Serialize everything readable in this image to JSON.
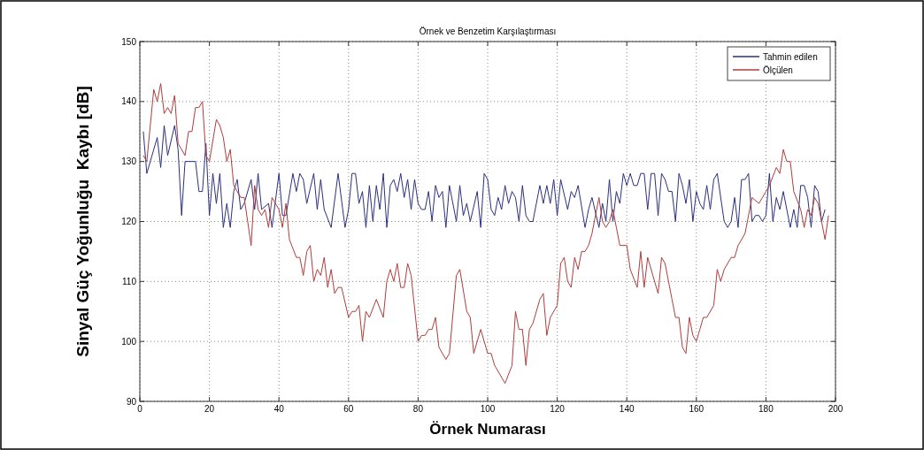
{
  "chart_data": {
    "type": "line",
    "title": "Örnek ve Benzetim Karşılaştırması",
    "xlabel": "Örnek Numarası",
    "ylabel": "Sinyal Güç Yoğunluğu  Kaybı [dB]",
    "xlim": [
      0,
      200
    ],
    "xticks": [
      0,
      20,
      40,
      60,
      80,
      100,
      120,
      140,
      160,
      180,
      200
    ],
    "ylim": [
      90,
      150
    ],
    "yticks": [
      90,
      100,
      110,
      120,
      130,
      140,
      150
    ],
    "grid": true,
    "legend": "top right",
    "line_style": "solid",
    "series": [
      {
        "name": "Tahmin edilen",
        "color": "#2b2f7e",
        "x": [
          1,
          2,
          5,
          6,
          7,
          8,
          10,
          11,
          12,
          13,
          16,
          17,
          18,
          19,
          20,
          21,
          22,
          23,
          24,
          25,
          26,
          27,
          28,
          29,
          30,
          32,
          33,
          34,
          35,
          37,
          38,
          40,
          41,
          42,
          44,
          45,
          46,
          47,
          48,
          50,
          51,
          52,
          53,
          55,
          57,
          59,
          60,
          61,
          62,
          63,
          64,
          65,
          66,
          67,
          68,
          69,
          70,
          71,
          72,
          73,
          74,
          75,
          76,
          77,
          78,
          79,
          80,
          81,
          82,
          83,
          84,
          85,
          86,
          87,
          88,
          89,
          91,
          92,
          93,
          94,
          95,
          97,
          98,
          99,
          100,
          101,
          102,
          103,
          104,
          105,
          106,
          107,
          108,
          109,
          110,
          111,
          112,
          113,
          115,
          116,
          117,
          118,
          119,
          120,
          121,
          123,
          124,
          125,
          126,
          128,
          129,
          130,
          132,
          133,
          134,
          135,
          136,
          137,
          138,
          139,
          140,
          141,
          142,
          143,
          144,
          145,
          146,
          147,
          148,
          149,
          150,
          151,
          152,
          153,
          154,
          155,
          156,
          157,
          158,
          159,
          160,
          161,
          162,
          163,
          164,
          165,
          166,
          168,
          169,
          170,
          171,
          172,
          173,
          174,
          175,
          176,
          177,
          178,
          179,
          180,
          181,
          182,
          183,
          184,
          185,
          186,
          187,
          188,
          189,
          190,
          191,
          192,
          193,
          194,
          195,
          196,
          197
        ],
        "values": [
          135,
          128,
          134,
          129,
          136,
          131,
          136,
          132,
          121,
          130,
          130,
          125,
          125,
          133,
          121,
          128,
          123,
          128,
          119,
          123,
          119,
          125,
          127,
          122,
          123,
          127,
          122,
          128,
          122,
          123,
          119,
          128,
          121,
          121,
          128,
          125,
          128,
          127,
          123,
          128,
          122,
          127,
          122,
          119,
          128,
          119,
          122,
          128,
          128,
          123,
          125,
          119,
          126,
          120,
          126,
          122,
          128,
          119,
          126,
          127,
          125,
          128,
          124,
          127,
          122,
          127,
          123,
          122,
          122,
          125,
          120,
          126,
          124,
          125,
          119,
          126,
          120,
          126,
          121,
          123,
          120,
          125,
          119,
          128,
          127,
          122,
          121,
          124,
          122,
          126,
          123,
          125,
          124,
          120,
          126,
          121,
          120,
          120,
          126,
          123,
          126,
          123,
          127,
          121,
          127,
          122,
          125,
          124,
          126,
          119,
          122,
          124,
          119,
          123,
          120,
          127,
          120,
          125,
          123,
          128,
          126,
          128,
          126,
          126,
          128,
          128,
          122,
          128,
          128,
          121,
          128,
          127,
          125,
          125,
          120,
          128,
          126,
          123,
          127,
          120,
          125,
          123,
          122,
          126,
          122,
          127,
          128,
          120,
          119,
          120,
          124,
          119,
          127,
          127,
          128,
          120,
          121,
          121,
          120,
          121,
          128,
          120,
          124,
          122,
          125,
          122,
          119,
          122,
          119,
          126,
          126,
          124,
          119,
          126,
          125,
          120,
          122
        ]
      },
      {
        "name": "Ölçülen",
        "color": "#b03c3c",
        "x": [
          1,
          2,
          4,
          5,
          6,
          7,
          8,
          9,
          10,
          11,
          13,
          14,
          15,
          16,
          17,
          18,
          19,
          20,
          22,
          23,
          24,
          25,
          26,
          27,
          29,
          30,
          31,
          32,
          33,
          34,
          35,
          36,
          37,
          38,
          40,
          41,
          42,
          43,
          45,
          46,
          47,
          48,
          49,
          50,
          51,
          52,
          53,
          54,
          55,
          56,
          57,
          58,
          60,
          61,
          62,
          63,
          64,
          65,
          66,
          68,
          70,
          71,
          72,
          73,
          74,
          75,
          76,
          77,
          78,
          80,
          81,
          82,
          83,
          84,
          85,
          86,
          88,
          89,
          91,
          92,
          94,
          95,
          96,
          98,
          99,
          100,
          101,
          102,
          105,
          107,
          108,
          109,
          110,
          111,
          112,
          113,
          115,
          116,
          117,
          118,
          120,
          121,
          122,
          123,
          124,
          125,
          126,
          127,
          128,
          129,
          130,
          131,
          132,
          133,
          134,
          135,
          136,
          137,
          138,
          140,
          141,
          143,
          144,
          145,
          146,
          149,
          150,
          151,
          152,
          153,
          154,
          155,
          156,
          157,
          158,
          159,
          160,
          161,
          162,
          163,
          165,
          166,
          167,
          168,
          170,
          171,
          172,
          174,
          175,
          176,
          178,
          180,
          181,
          183,
          184,
          185,
          186,
          187,
          188,
          190,
          191,
          192,
          193,
          194,
          195,
          197,
          198
        ],
        "values": [
          131,
          130,
          142,
          140,
          143,
          138,
          139,
          138,
          141,
          133,
          131,
          135,
          135,
          139,
          139,
          140,
          131,
          130,
          137,
          136,
          134,
          130,
          132,
          126,
          124,
          124,
          120,
          116,
          126,
          122,
          121,
          122,
          119,
          124,
          122,
          119,
          123,
          117,
          114,
          114,
          111,
          115,
          116,
          110,
          112,
          111,
          114,
          109,
          112,
          108,
          109,
          109,
          104,
          105,
          105,
          106,
          100,
          105,
          104,
          107,
          104,
          110,
          112,
          110,
          113,
          109,
          109,
          113,
          111,
          100,
          101,
          101,
          102,
          102,
          104,
          99,
          97,
          98,
          111,
          112,
          105,
          104,
          98,
          102,
          100,
          98,
          98,
          96,
          93,
          96,
          105,
          102,
          102,
          96,
          102,
          103,
          107,
          108,
          101,
          104,
          106,
          113,
          114,
          110,
          109,
          114,
          112,
          115,
          115,
          116,
          118,
          121,
          124,
          120,
          119,
          120,
          122,
          119,
          116,
          116,
          112,
          109,
          115,
          109,
          114,
          108,
          114,
          113,
          110,
          107,
          104,
          104,
          99,
          98,
          104,
          101,
          100,
          102,
          104,
          104,
          106,
          112,
          110,
          112,
          114,
          114,
          116,
          118,
          121,
          124,
          123,
          125,
          126,
          129,
          128,
          132,
          130,
          130,
          125,
          122,
          119,
          122,
          121,
          124,
          123,
          117,
          121
        ]
      }
    ]
  }
}
